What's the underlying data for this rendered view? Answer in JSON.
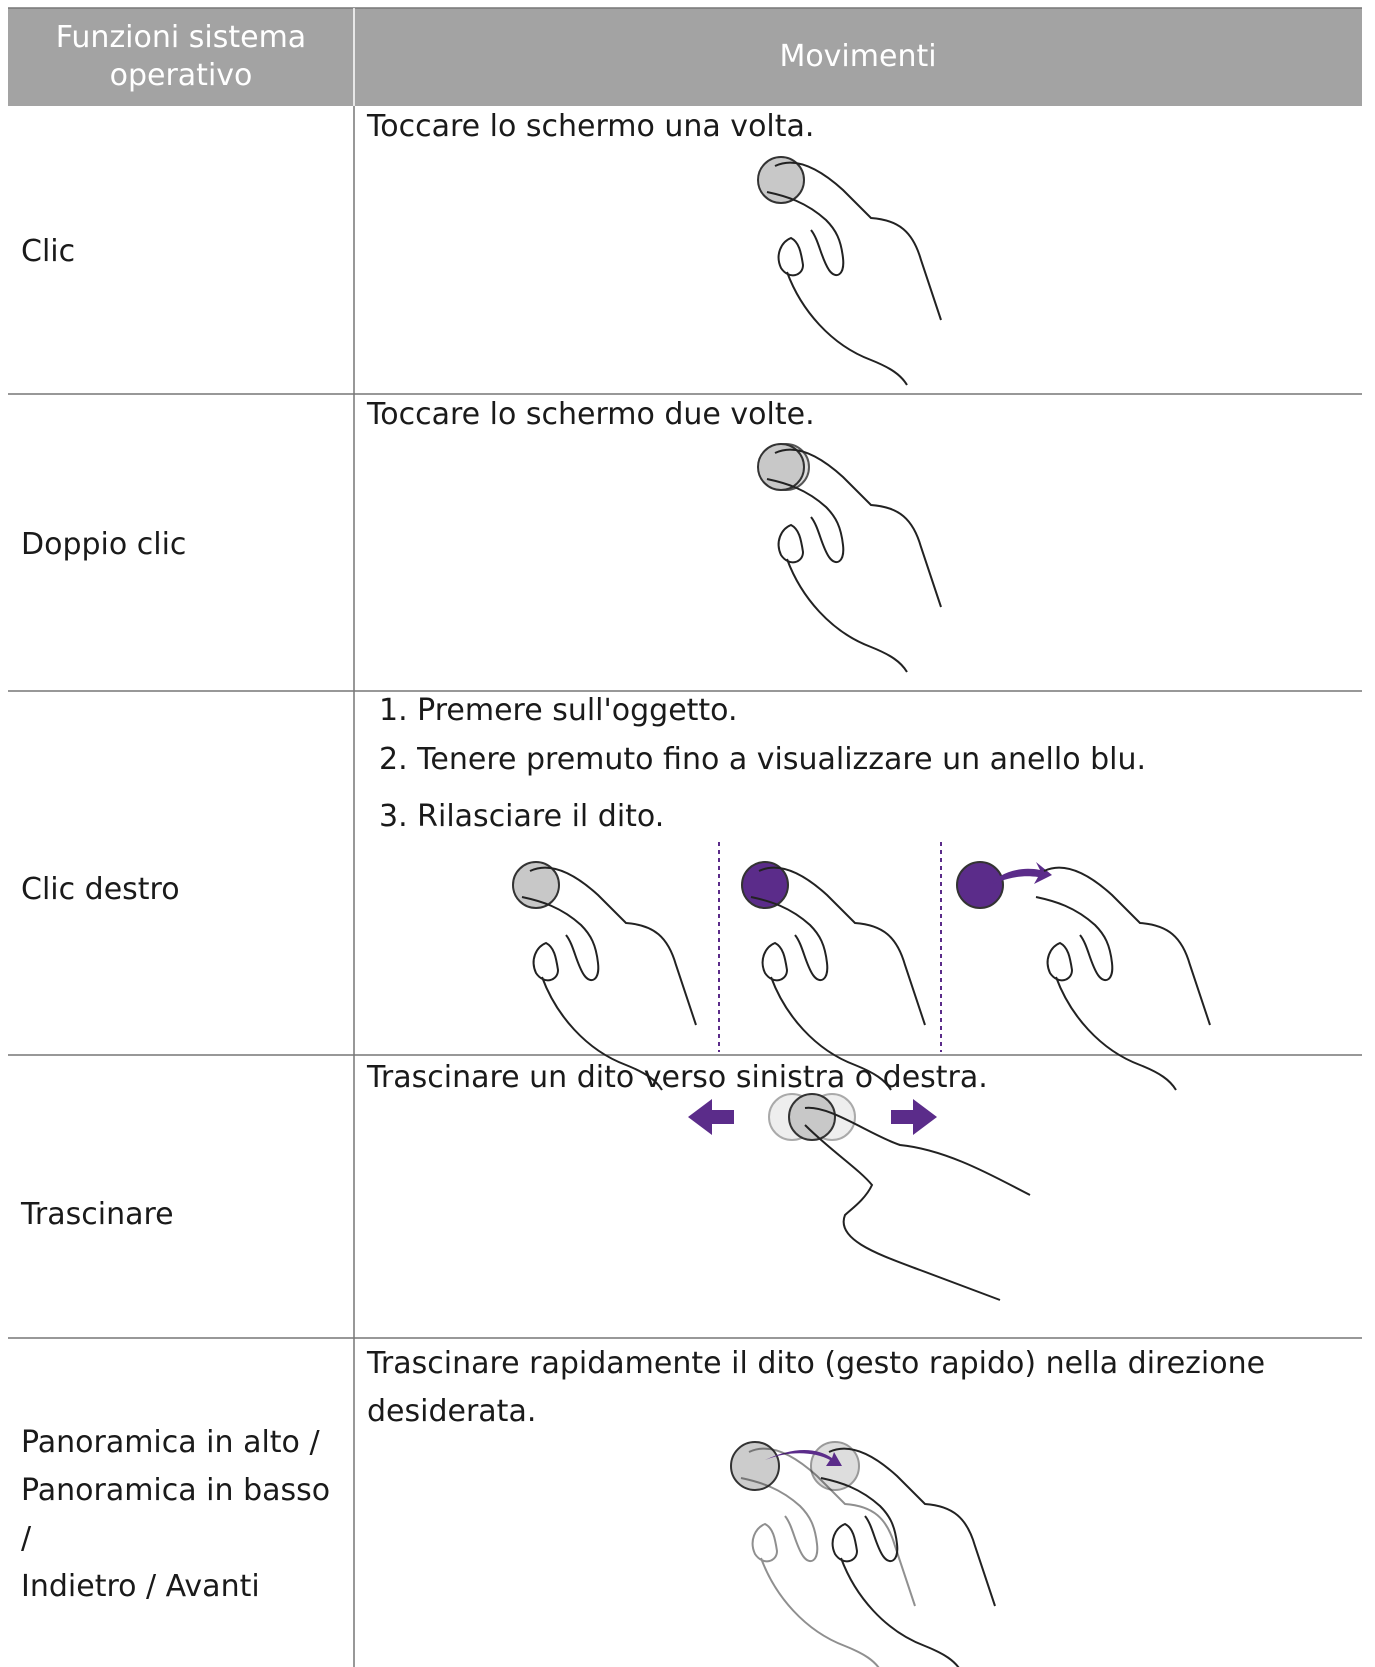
{
  "header": {
    "columns": [
      "Funzioni sistema operativo",
      "Movimenti"
    ]
  },
  "rows": [
    {
      "function": "Clic",
      "gesture": "Toccare lo schermo una volta."
    },
    {
      "function": "Doppio clic",
      "gesture": "Toccare lo schermo due volte."
    },
    {
      "function": "Clic destro",
      "steps": [
        "1. Premere sull'oggetto.",
        "2. Tenere premuto fino a visualizzare un anello blu.",
        "3. Rilasciare il dito."
      ]
    },
    {
      "function": "Trascinare",
      "gesture": "Trascinare un dito verso sinistra o destra."
    },
    {
      "function_lines": [
        "Panoramica in alto /",
        "Panoramica in basso /",
        "Indietro / Avanti"
      ],
      "gesture": "Trascinare rapidamente il dito (gesto rapido) nella direzione desiderata."
    }
  ]
}
